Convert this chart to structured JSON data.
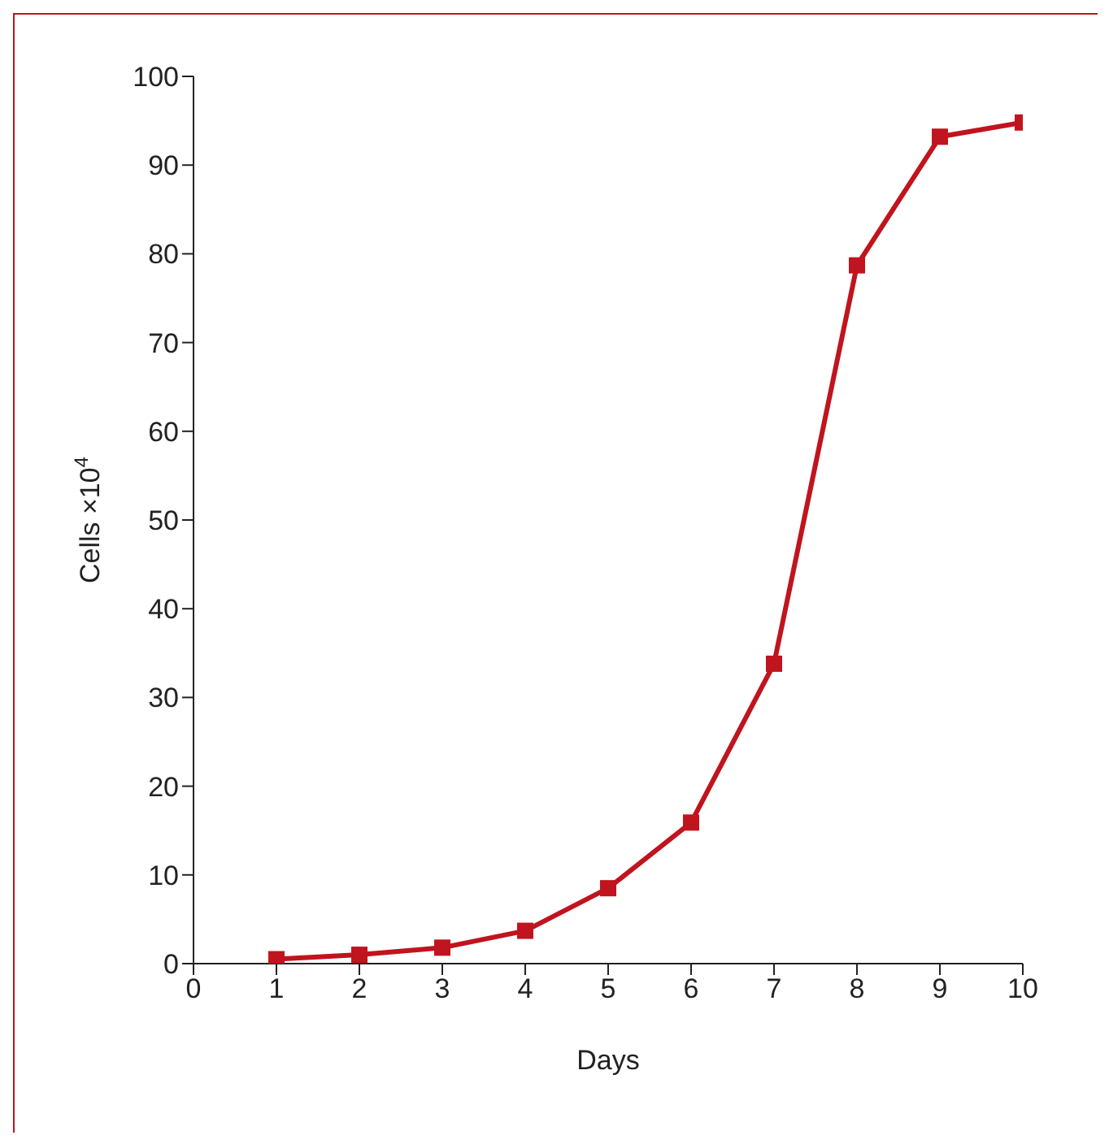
{
  "chart_data": {
    "type": "line",
    "xlabel": "Days",
    "ylabel": "Cells ×10$^{4}$",
    "x": [
      1,
      2,
      3,
      4,
      5,
      6,
      7,
      8,
      9,
      10
    ],
    "series": [
      {
        "color": "#c0141e",
        "values": [
          0.5,
          1,
          1.8,
          3.7,
          8.5,
          15.9,
          33.8,
          78.7,
          93.2,
          94.8
        ]
      }
    ],
    "xlim": [
      0,
      10
    ],
    "xticks": [
      0,
      1,
      2,
      3,
      4,
      5,
      6,
      7,
      8,
      9,
      10
    ],
    "ylim": [
      0,
      100
    ],
    "yticks": [
      0,
      10,
      20,
      30,
      40,
      50,
      60,
      70,
      80,
      90,
      100
    ],
    "grid": false,
    "legend": false,
    "marker": "square",
    "line_style": "solid"
  }
}
